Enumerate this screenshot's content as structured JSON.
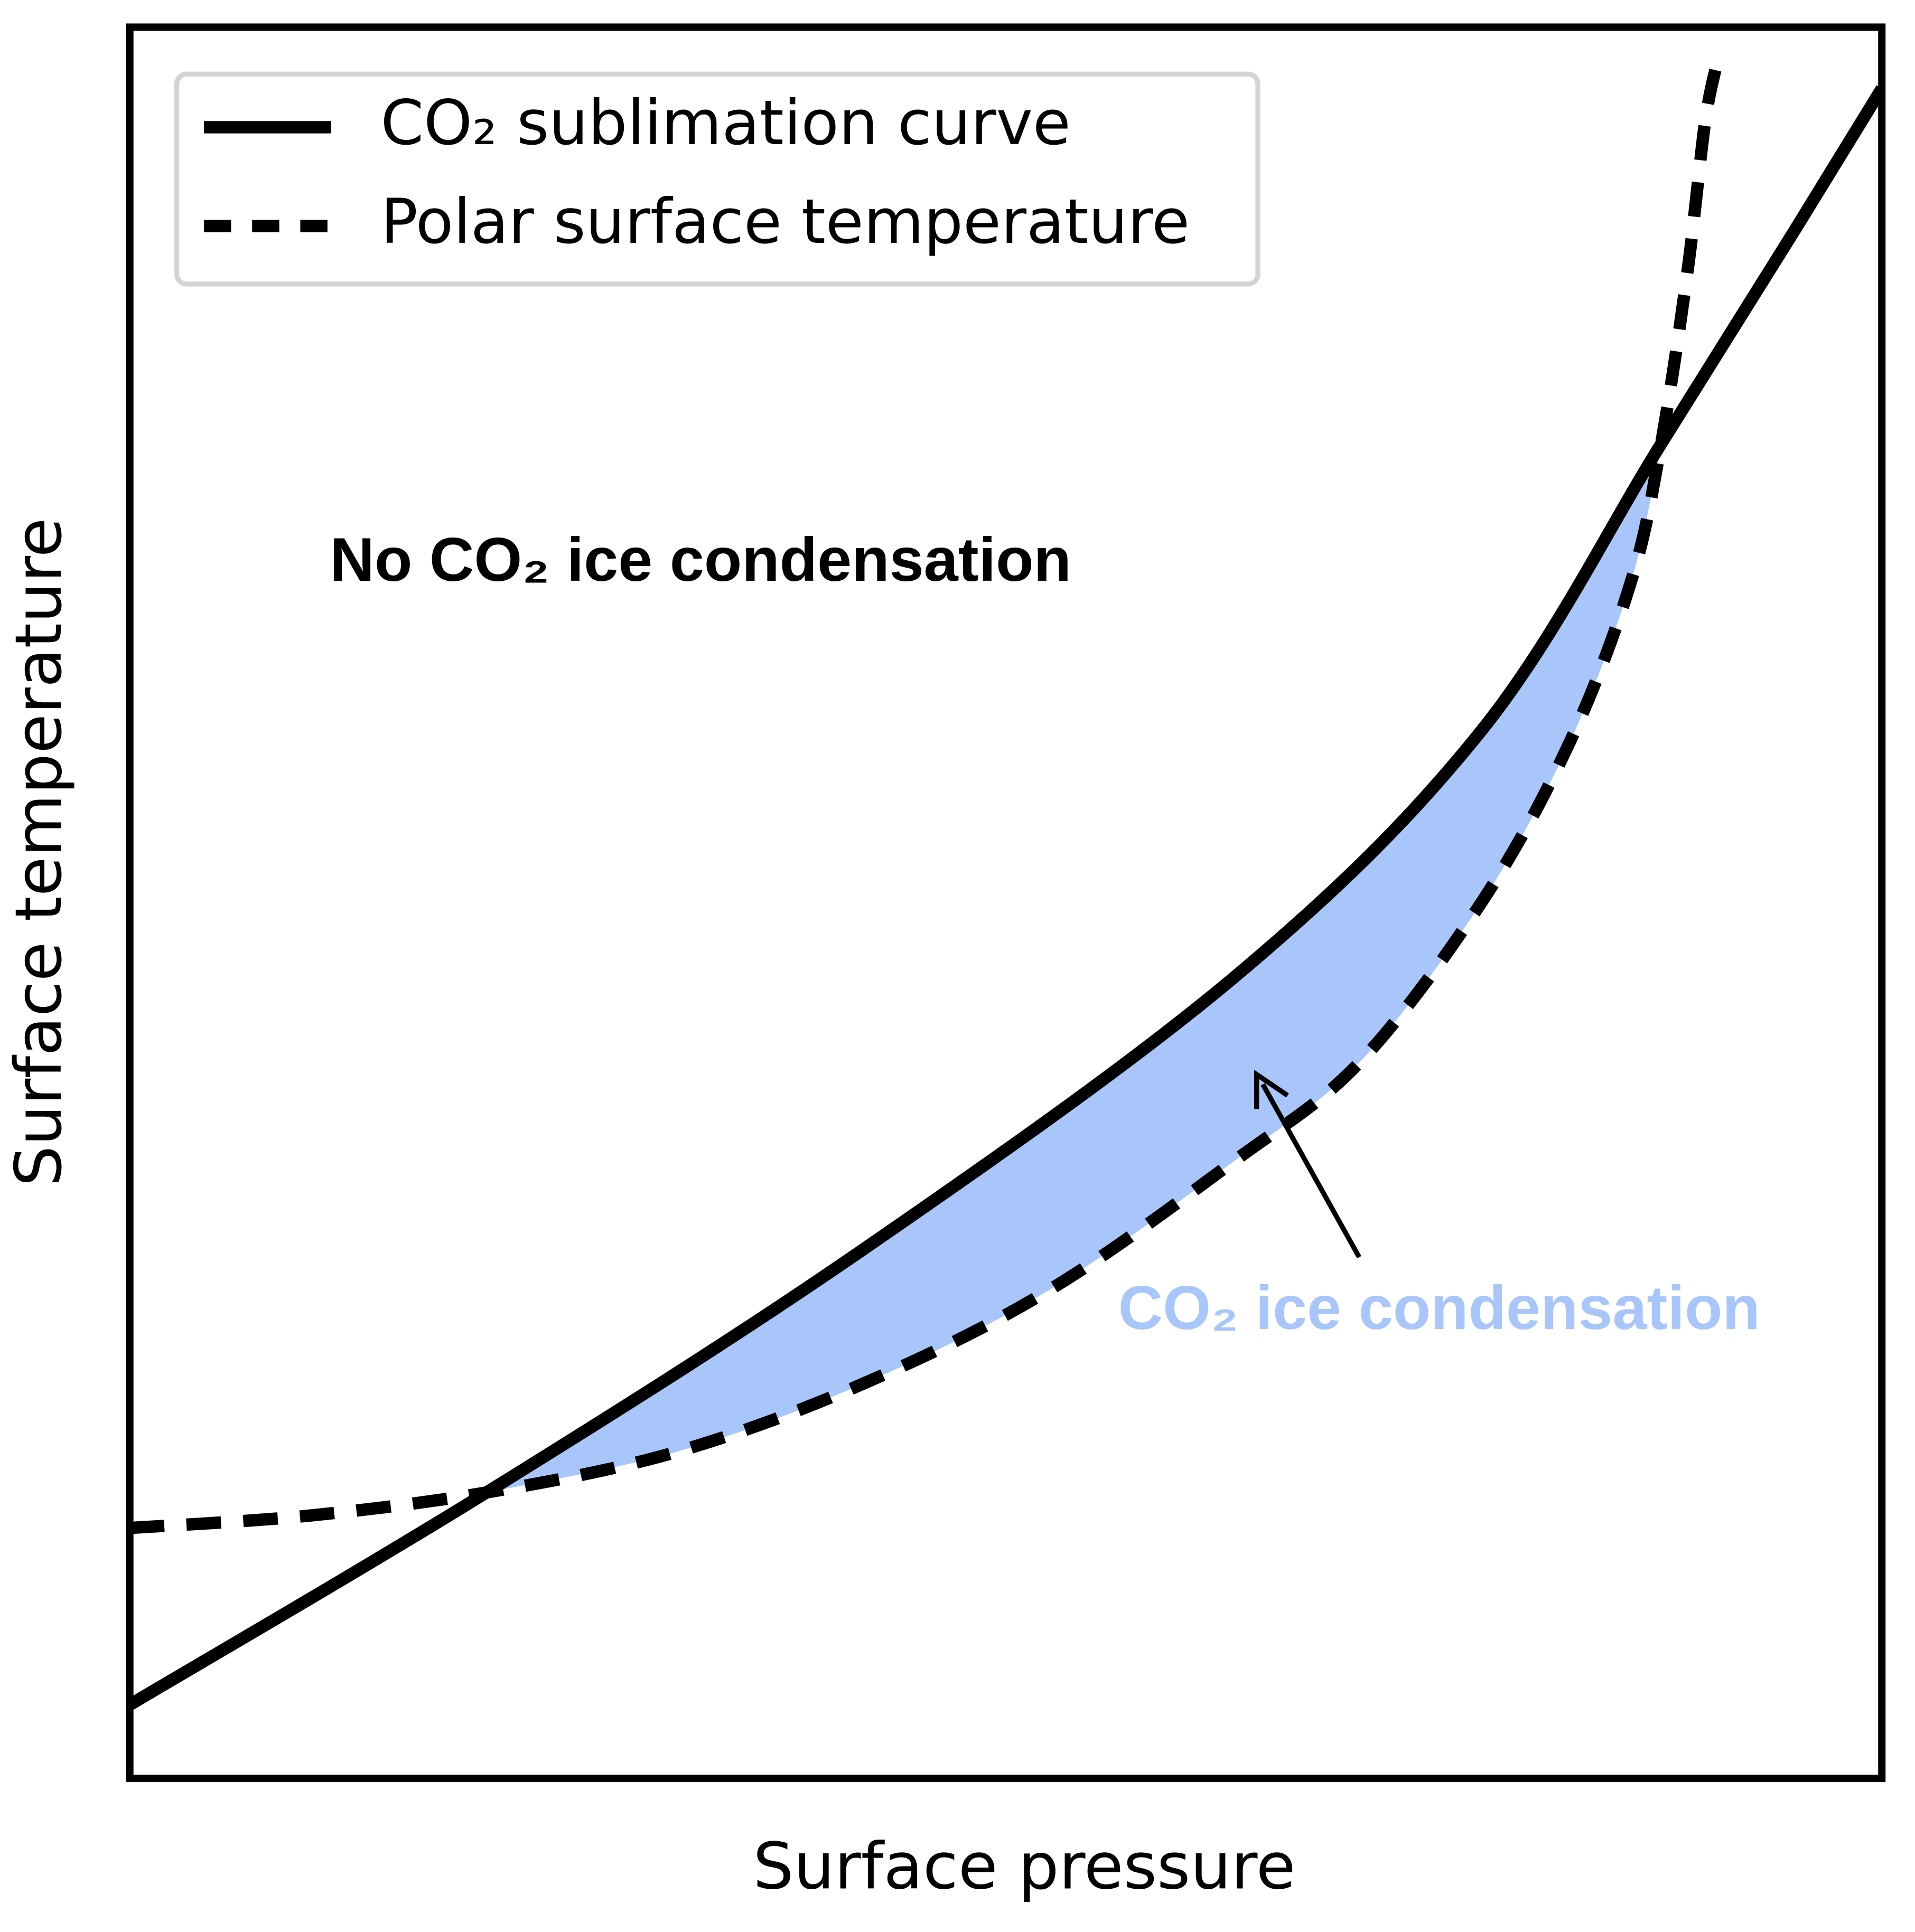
{
  "chart_data": {
    "type": "line",
    "xlabel": "Surface pressure",
    "ylabel": "Surface temperature",
    "xlim": [
      0,
      1
    ],
    "ylim": [
      0,
      1
    ],
    "legend": "upper left",
    "fill_color": "#a8c6fa",
    "annotations": [
      "No CO₂ ice condensation",
      "CO₂ ice condensation"
    ],
    "series": [
      {
        "name": "CO₂ sublimation curve",
        "color": "#000000",
        "linestyle": "solid",
        "x": [
          0,
          0.208,
          0.42,
          0.631,
          0.772,
          0.874,
          0.949,
          1.0
        ],
        "values": [
          0.042,
          0.166,
          0.303,
          0.458,
          0.599,
          0.762,
          0.882,
          0.965
        ]
      },
      {
        "name": "Polar surface temperature",
        "color": "#000000",
        "linestyle": "dashed",
        "x": [
          0,
          0.102,
          0.208,
          0.314,
          0.42,
          0.525,
          0.631,
          0.702,
          0.772,
          0.822,
          0.857,
          0.874,
          0.889,
          0.899,
          0.906
        ],
        "values": [
          0.143,
          0.15,
          0.164,
          0.187,
          0.226,
          0.279,
          0.353,
          0.409,
          0.501,
          0.592,
          0.684,
          0.762,
          0.86,
          0.945,
          0.98
        ]
      }
    ]
  }
}
